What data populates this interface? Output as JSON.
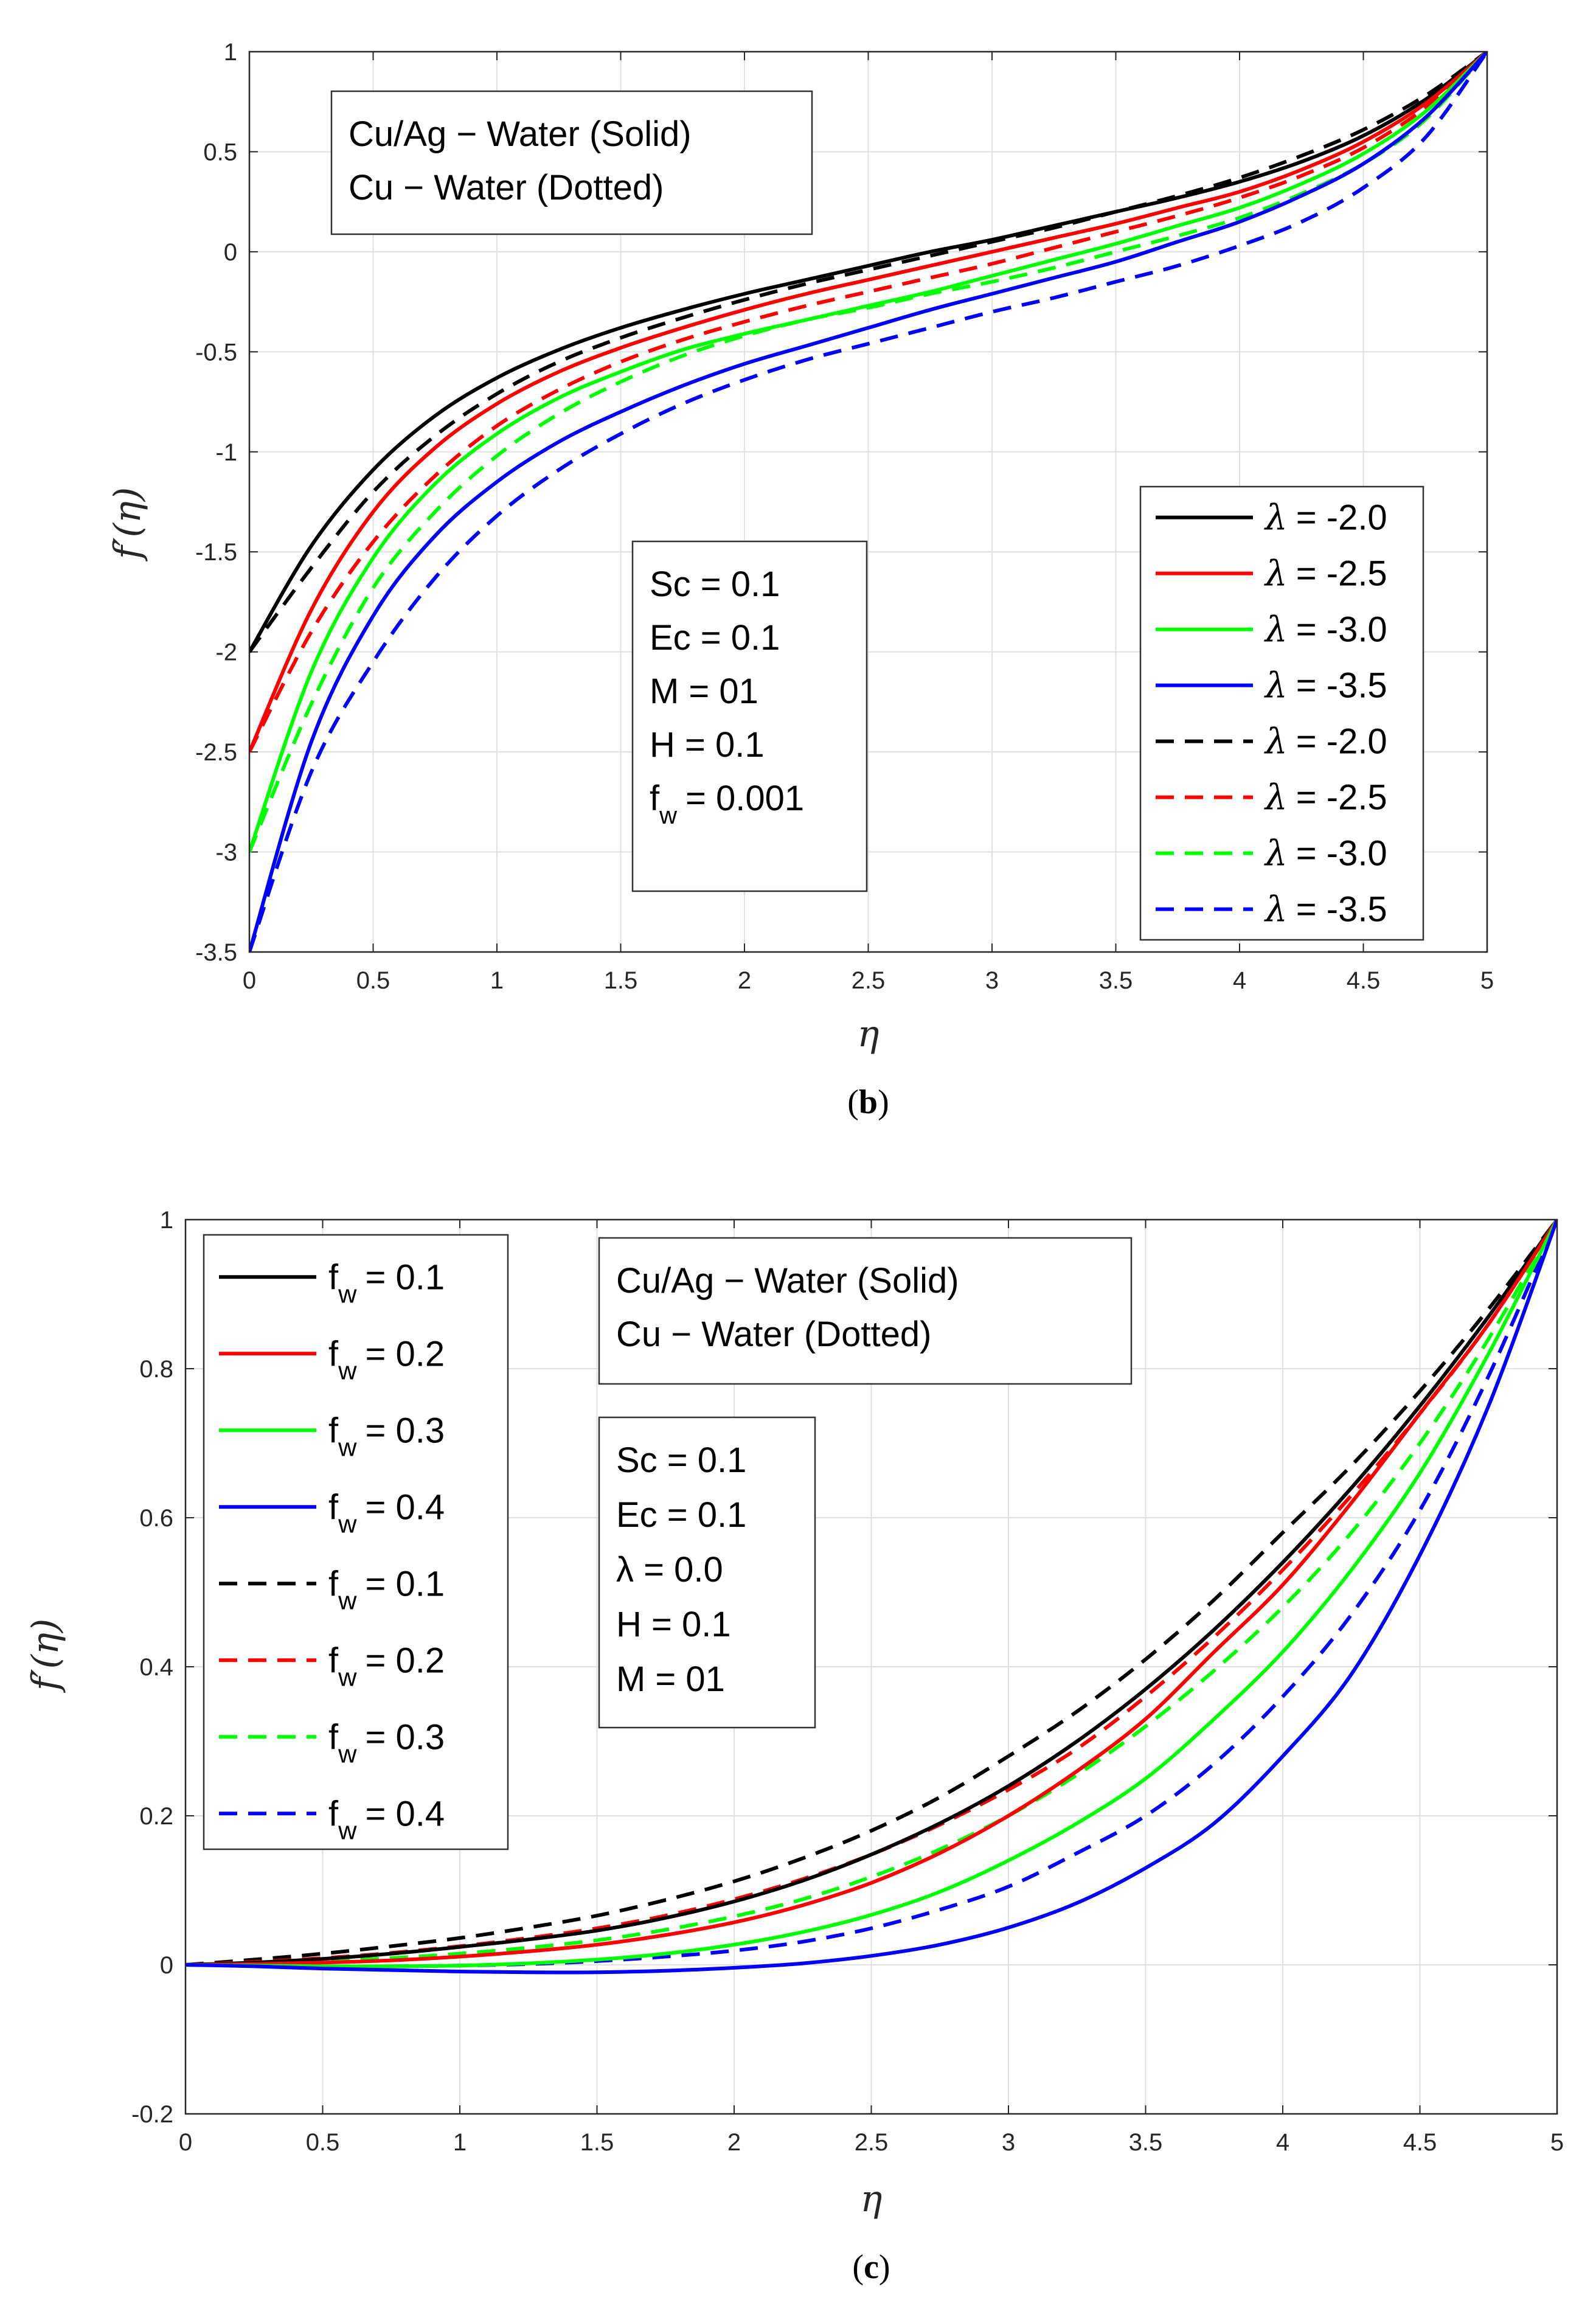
{
  "colors": {
    "black": "#000000",
    "red": "#ff0000",
    "green": "#00ff00",
    "blue": "#0000ff",
    "grid": "#e0e0e0",
    "axis": "#262626"
  },
  "chart_data": [
    {
      "type": "line",
      "panel_label": "b",
      "xlabel": "η",
      "ylabel": "f′(η)",
      "xlim": [
        0,
        5
      ],
      "ylim": [
        -3.5,
        1
      ],
      "xticks": [
        "0",
        "0.5",
        "1",
        "1.5",
        "2",
        "2.5",
        "3",
        "3.5",
        "4",
        "4.5",
        "5"
      ],
      "yticks": [
        "-3.5",
        "-3",
        "-2.5",
        "-2",
        "-1.5",
        "-1",
        "-0.5",
        "0",
        "0.5",
        "1"
      ],
      "grid": true,
      "legend_position": "bottom-right",
      "annotation_material": [
        "Cu/Ag − Water (Solid)",
        "Cu − Water (Dotted)"
      ],
      "annotation_params": [
        "Sc = 0.1",
        "Ec = 0.1",
        "M = 01",
        "H = 0.1"
      ],
      "annotation_fw": {
        "symbol": "f",
        "subscript": "w",
        "value": "= 0.001"
      },
      "x": [
        0,
        0.25,
        0.5,
        0.75,
        1,
        1.25,
        1.5,
        1.75,
        2,
        2.25,
        2.5,
        2.75,
        3,
        3.25,
        3.5,
        3.75,
        4,
        4.25,
        4.5,
        4.75,
        5
      ],
      "series": [
        {
          "name": "λ = -2.0",
          "legend_symbol": "λ",
          "legend_value": "= -2.0",
          "style": "solid",
          "color": "#000000",
          "values": [
            -2.0,
            -1.47,
            -1.09,
            -0.82,
            -0.63,
            -0.49,
            -0.38,
            -0.29,
            -0.21,
            -0.14,
            -0.07,
            0.0,
            0.06,
            0.13,
            0.2,
            0.27,
            0.35,
            0.45,
            0.58,
            0.76,
            1.0
          ]
        },
        {
          "name": "λ = -2.5",
          "legend_symbol": "λ",
          "legend_value": "= -2.5",
          "style": "solid",
          "color": "#ff0000",
          "values": [
            -2.5,
            -1.79,
            -1.3,
            -0.98,
            -0.76,
            -0.6,
            -0.48,
            -0.38,
            -0.29,
            -0.21,
            -0.14,
            -0.07,
            0.0,
            0.07,
            0.14,
            0.22,
            0.3,
            0.41,
            0.55,
            0.74,
            1.0
          ]
        },
        {
          "name": "λ = -3.0",
          "legend_symbol": "λ",
          "legend_value": "= -3.0",
          "style": "solid",
          "color": "#00ff00",
          "values": [
            -3.0,
            -2.1,
            -1.53,
            -1.16,
            -0.91,
            -0.73,
            -0.6,
            -0.49,
            -0.41,
            -0.34,
            -0.27,
            -0.2,
            -0.12,
            -0.04,
            0.04,
            0.13,
            0.22,
            0.34,
            0.49,
            0.7,
            1.0
          ]
        },
        {
          "name": "λ = -3.5",
          "legend_symbol": "λ",
          "legend_value": "= -3.5",
          "style": "solid",
          "color": "#0000ff",
          "values": [
            -3.5,
            -2.45,
            -1.82,
            -1.42,
            -1.15,
            -0.95,
            -0.8,
            -0.67,
            -0.56,
            -0.47,
            -0.38,
            -0.29,
            -0.21,
            -0.13,
            -0.05,
            0.05,
            0.15,
            0.28,
            0.44,
            0.67,
            1.0
          ]
        },
        {
          "name": "λ = -2.0",
          "legend_symbol": "λ",
          "legend_value": "= -2.0",
          "style": "dashed",
          "color": "#000000",
          "values": [
            -2.0,
            -1.58,
            -1.2,
            -0.92,
            -0.71,
            -0.55,
            -0.43,
            -0.33,
            -0.24,
            -0.16,
            -0.09,
            -0.02,
            0.05,
            0.12,
            0.2,
            0.28,
            0.37,
            0.48,
            0.61,
            0.78,
            1.0
          ]
        },
        {
          "name": "λ = -2.5",
          "legend_symbol": "λ",
          "legend_value": "= -2.5",
          "style": "dashed",
          "color": "#ff0000",
          "values": [
            -2.5,
            -1.9,
            -1.45,
            -1.12,
            -0.87,
            -0.69,
            -0.55,
            -0.44,
            -0.35,
            -0.27,
            -0.2,
            -0.13,
            -0.06,
            0.02,
            0.1,
            0.18,
            0.27,
            0.38,
            0.52,
            0.72,
            1.0
          ]
        },
        {
          "name": "λ = -3.0",
          "legend_symbol": "λ",
          "legend_value": "= -3.0",
          "style": "dashed",
          "color": "#00ff00",
          "values": [
            -3.0,
            -2.26,
            -1.68,
            -1.3,
            -1.02,
            -0.81,
            -0.65,
            -0.52,
            -0.42,
            -0.34,
            -0.28,
            -0.21,
            -0.15,
            -0.08,
            0.0,
            0.08,
            0.17,
            0.29,
            0.44,
            0.66,
            1.0
          ]
        },
        {
          "name": "λ = -3.5",
          "legend_symbol": "λ",
          "legend_value": "= -3.5",
          "style": "dashed",
          "color": "#0000ff",
          "values": [
            -3.5,
            -2.6,
            -2.05,
            -1.63,
            -1.32,
            -1.09,
            -0.91,
            -0.76,
            -0.64,
            -0.54,
            -0.46,
            -0.38,
            -0.3,
            -0.23,
            -0.15,
            -0.07,
            0.03,
            0.15,
            0.32,
            0.57,
            1.0
          ]
        }
      ]
    },
    {
      "type": "line",
      "panel_label": "c",
      "xlabel": "η",
      "ylabel": "f′(η)",
      "xlim": [
        0,
        5
      ],
      "ylim": [
        -0.2,
        1
      ],
      "xticks": [
        "0",
        "0.5",
        "1",
        "1.5",
        "2",
        "2.5",
        "3",
        "3.5",
        "4",
        "4.5",
        "5"
      ],
      "yticks": [
        "-0.2",
        "0",
        "0.2",
        "0.4",
        "0.6",
        "0.8",
        "1"
      ],
      "grid": true,
      "legend_position": "top-left",
      "annotation_material": [
        "Cu/Ag − Water (Solid)",
        "Cu − Water (Dotted)"
      ],
      "annotation_params": [
        "Sc = 0.1",
        "Ec = 0.1",
        "λ = 0.0",
        "H = 0.1",
        "M = 01"
      ],
      "x": [
        0,
        0.25,
        0.5,
        0.75,
        1,
        1.25,
        1.5,
        1.75,
        2,
        2.25,
        2.5,
        2.75,
        3,
        3.25,
        3.5,
        3.75,
        4,
        4.25,
        4.5,
        4.75,
        5
      ],
      "series": [
        {
          "name": "fw = 0.1",
          "legend_symbol": "f",
          "legend_subscript": "w",
          "legend_value": "= 0.1",
          "style": "solid",
          "color": "#000000",
          "values": [
            0,
            0.003,
            0.008,
            0.015,
            0.024,
            0.034,
            0.046,
            0.063,
            0.085,
            0.113,
            0.148,
            0.19,
            0.24,
            0.3,
            0.37,
            0.45,
            0.54,
            0.64,
            0.75,
            0.87,
            1.0
          ]
        },
        {
          "name": "fw = 0.2",
          "legend_symbol": "f",
          "legend_subscript": "w",
          "legend_value": "= 0.2",
          "style": "solid",
          "color": "#ff0000",
          "values": [
            0,
            0.001,
            0.003,
            0.006,
            0.011,
            0.018,
            0.027,
            0.04,
            0.057,
            0.08,
            0.11,
            0.15,
            0.2,
            0.26,
            0.33,
            0.42,
            0.51,
            0.62,
            0.74,
            0.86,
            1.0
          ]
        },
        {
          "name": "fw = 0.3",
          "legend_symbol": "f",
          "legend_subscript": "w",
          "legend_value": "= 0.3",
          "style": "solid",
          "color": "#00ff00",
          "values": [
            0,
            -0.001,
            -0.002,
            -0.002,
            -0.001,
            0.002,
            0.007,
            0.015,
            0.027,
            0.044,
            0.067,
            0.098,
            0.14,
            0.19,
            0.25,
            0.33,
            0.42,
            0.53,
            0.66,
            0.82,
            1.0
          ]
        },
        {
          "name": "fw = 0.4",
          "legend_symbol": "f",
          "legend_subscript": "w",
          "legend_value": "= 0.4",
          "style": "solid",
          "color": "#0000ff",
          "values": [
            0,
            -0.002,
            -0.005,
            -0.007,
            -0.009,
            -0.01,
            -0.01,
            -0.008,
            -0.004,
            0.002,
            0.012,
            0.027,
            0.05,
            0.083,
            0.13,
            0.19,
            0.28,
            0.39,
            0.55,
            0.75,
            1.0
          ]
        },
        {
          "name": "fw = 0.1",
          "legend_symbol": "f",
          "legend_subscript": "w",
          "legend_value": "= 0.1",
          "style": "dashed",
          "color": "#000000",
          "values": [
            0,
            0.007,
            0.015,
            0.025,
            0.036,
            0.05,
            0.066,
            0.087,
            0.112,
            0.143,
            0.18,
            0.225,
            0.28,
            0.34,
            0.41,
            0.49,
            0.58,
            0.67,
            0.77,
            0.88,
            1.0
          ]
        },
        {
          "name": "fw = 0.2",
          "legend_symbol": "f",
          "legend_subscript": "w",
          "legend_value": "= 0.2",
          "style": "dashed",
          "color": "#ff0000",
          "values": [
            0,
            0.004,
            0.009,
            0.016,
            0.025,
            0.036,
            0.049,
            0.066,
            0.088,
            0.115,
            0.148,
            0.188,
            0.235,
            0.29,
            0.36,
            0.44,
            0.53,
            0.63,
            0.74,
            0.86,
            1.0
          ]
        },
        {
          "name": "fw = 0.3",
          "legend_symbol": "f",
          "legend_subscript": "w",
          "legend_value": "= 0.3",
          "style": "dashed",
          "color": "#00ff00",
          "values": [
            0,
            0.002,
            0.005,
            0.009,
            0.015,
            0.023,
            0.033,
            0.047,
            0.065,
            0.088,
            0.118,
            0.155,
            0.2,
            0.255,
            0.32,
            0.395,
            0.48,
            0.58,
            0.7,
            0.84,
            1.0
          ]
        },
        {
          "name": "fw = 0.4",
          "legend_symbol": "f",
          "legend_subscript": "w",
          "legend_value": "= 0.4",
          "style": "dashed",
          "color": "#0000ff",
          "values": [
            0,
            -0.001,
            -0.002,
            -0.002,
            -0.001,
            0.001,
            0.005,
            0.011,
            0.019,
            0.031,
            0.049,
            0.074,
            0.105,
            0.15,
            0.2,
            0.27,
            0.36,
            0.47,
            0.61,
            0.79,
            1.0
          ]
        }
      ]
    }
  ]
}
